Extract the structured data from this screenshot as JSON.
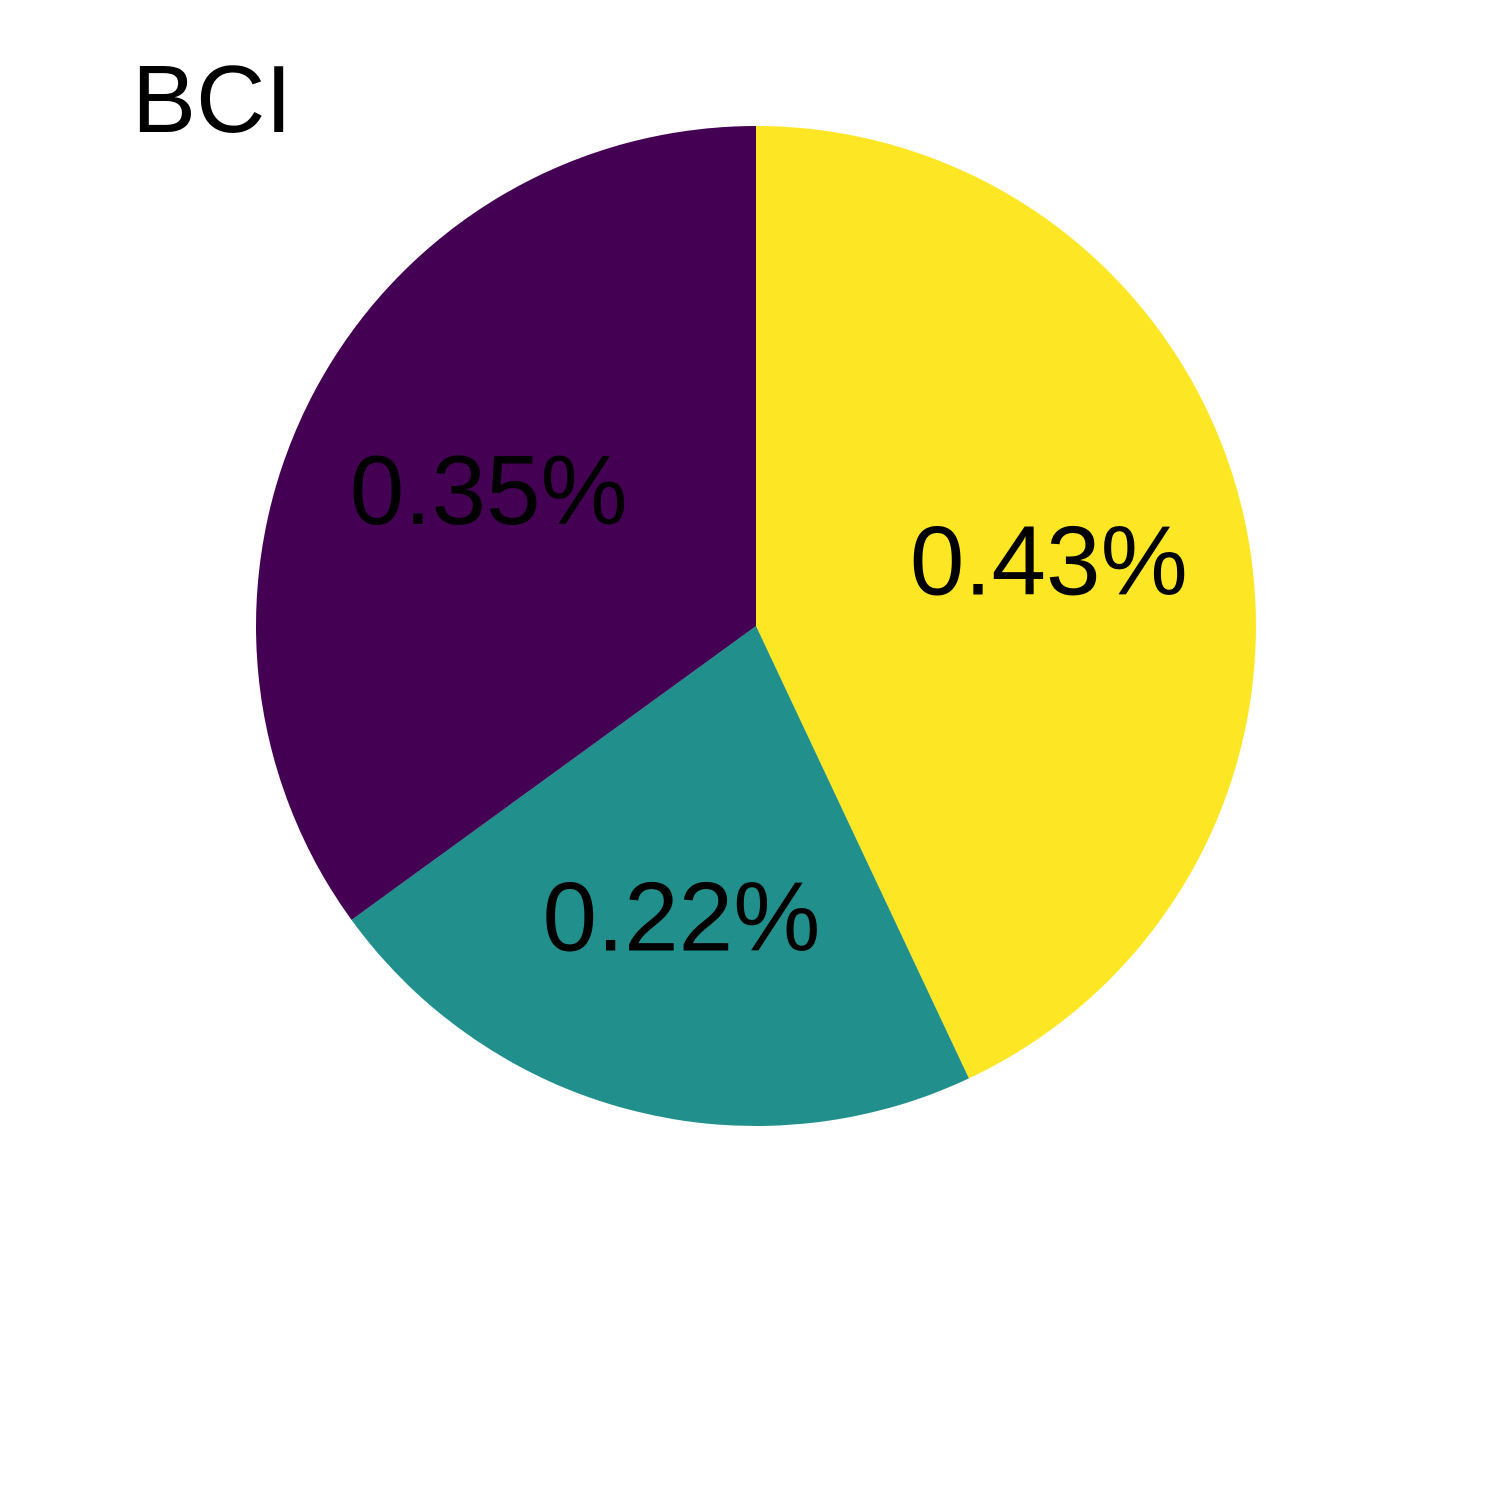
{
  "chart_data": {
    "type": "pie",
    "title": "BCI",
    "start": "top",
    "direction": "clockwise",
    "slices": [
      {
        "label": "0.43%",
        "value": 0.43,
        "color": "#fde725"
      },
      {
        "label": "0.22%",
        "value": 0.22,
        "color": "#21908d"
      },
      {
        "label": "0.35%",
        "value": 0.35,
        "color": "#440154"
      }
    ]
  }
}
